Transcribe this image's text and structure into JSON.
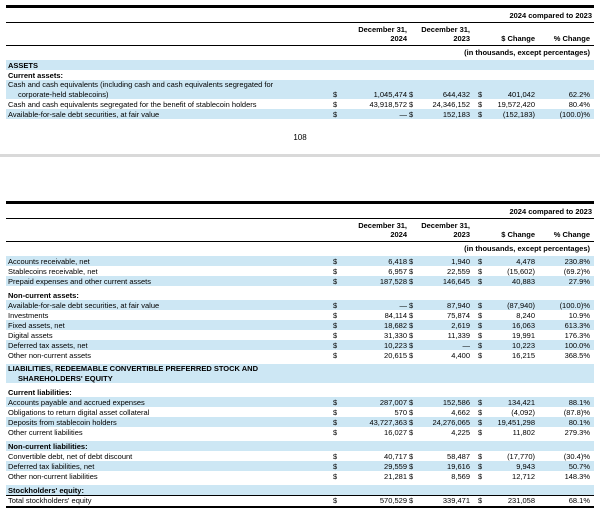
{
  "page": {
    "page_number": "108"
  },
  "table1": {
    "period_header": "2024 compared to 2023",
    "currency": "$",
    "columns": {
      "date1_line1": "December 31,",
      "date1_line2": "2024",
      "date2_line1": "December 31,",
      "date2_line2": "2023",
      "change_dollar": "$ Change",
      "change_percent": "% Change"
    },
    "units_note": "(in thousands, except percentages)",
    "rows": [
      {
        "type": "section",
        "shaded": true,
        "label": "ASSETS"
      },
      {
        "type": "section",
        "shaded": false,
        "label": "Current assets:"
      },
      {
        "type": "data",
        "shaded": true,
        "label": "Cash and cash equivalents (including cash and cash equivalents segregated for",
        "label2": "corporate-held stablecoins)",
        "v1": "1,045,474",
        "v2": "644,432",
        "v3": "401,042",
        "pct": "62.2%"
      },
      {
        "type": "data",
        "shaded": false,
        "label": "Cash and cash equivalents segregated for the benefit of stablecoin holders",
        "v1": "43,918,572",
        "v2": "24,346,152",
        "v3": "19,572,420",
        "pct": "80.4%"
      },
      {
        "type": "data",
        "shaded": true,
        "label": "Available-for-sale debt securities, at fair value",
        "v1": "—",
        "v2": "152,183",
        "v3": "(152,183)",
        "pct": "(100.0)%"
      }
    ]
  },
  "table2": {
    "period_header": "2024 compared to 2023",
    "currency": "$",
    "columns": {
      "date1_line1": "December 31,",
      "date1_line2": "2024",
      "date2_line1": "December 31,",
      "date2_line2": "2023",
      "change_dollar": "$ Change",
      "change_percent": "% Change"
    },
    "units_note": "(in thousands, except percentages)",
    "rows": [
      {
        "type": "data",
        "shaded": true,
        "label": "Accounts receivable, net",
        "v1": "6,418",
        "v2": "1,940",
        "v3": "4,478",
        "pct": "230.8%"
      },
      {
        "type": "data",
        "shaded": false,
        "label": "Stablecoins receivable, net",
        "v1": "6,957",
        "v2": "22,559",
        "v3": "(15,602)",
        "pct": "(69.2)%"
      },
      {
        "type": "data",
        "shaded": true,
        "label": "Prepaid expenses and other current assets",
        "v1": "187,528",
        "v2": "146,645",
        "v3": "40,883",
        "pct": "27.9%"
      },
      {
        "type": "spacer"
      },
      {
        "type": "section",
        "shaded": false,
        "label": "Non-current assets:"
      },
      {
        "type": "data",
        "shaded": true,
        "label": "Available-for-sale debt securities, at fair value",
        "v1": "—",
        "v2": "87,940",
        "v3": "(87,940)",
        "pct": "(100.0)%"
      },
      {
        "type": "data",
        "shaded": false,
        "label": "Investments",
        "v1": "84,114",
        "v2": "75,874",
        "v3": "8,240",
        "pct": "10.9%"
      },
      {
        "type": "data",
        "shaded": true,
        "label": "Fixed assets, net",
        "v1": "18,682",
        "v2": "2,619",
        "v3": "16,063",
        "pct": "613.3%"
      },
      {
        "type": "data",
        "shaded": false,
        "label": "Digital assets",
        "v1": "31,330",
        "v2": "11,339",
        "v3": "19,991",
        "pct": "176.3%"
      },
      {
        "type": "data",
        "shaded": true,
        "label": "Deferred tax assets, net",
        "v1": "10,223",
        "v2": "—",
        "v3": "10,223",
        "pct": "100.0%"
      },
      {
        "type": "data",
        "shaded": false,
        "label": "Other non-current assets",
        "v1": "20,615",
        "v2": "4,400",
        "v3": "16,215",
        "pct": "368.5%"
      },
      {
        "type": "spacer"
      },
      {
        "type": "section",
        "shaded": true,
        "label": "LIABILITIES, REDEEMABLE CONVERTIBLE PREFERRED STOCK AND",
        "label2": "SHAREHOLDERS' EQUITY"
      },
      {
        "type": "spacer"
      },
      {
        "type": "section",
        "shaded": false,
        "label": "Current liabilities:"
      },
      {
        "type": "data",
        "shaded": true,
        "label": "Accounts payable and accrued expenses",
        "v1": "287,007",
        "v2": "152,586",
        "v3": "134,421",
        "pct": "88.1%"
      },
      {
        "type": "data",
        "shaded": false,
        "label": "Obligations to return digital asset collateral",
        "v1": "570",
        "v2": "4,662",
        "v3": "(4,092)",
        "pct": "(87.8)%"
      },
      {
        "type": "data",
        "shaded": true,
        "label": "Deposits from stablecoin holders",
        "v1": "43,727,363",
        "v2": "24,276,065",
        "v3": "19,451,298",
        "pct": "80.1%"
      },
      {
        "type": "data",
        "shaded": false,
        "label": "Other current liabilities",
        "v1": "16,027",
        "v2": "4,225",
        "v3": "11,802",
        "pct": "279.3%"
      },
      {
        "type": "spacer"
      },
      {
        "type": "section",
        "shaded": true,
        "label": "Non-current liabilities:"
      },
      {
        "type": "data",
        "shaded": false,
        "label": "Convertible debt, net of debt discount",
        "v1": "40,717",
        "v2": "58,487",
        "v3": "(17,770)",
        "pct": "(30.4)%"
      },
      {
        "type": "data",
        "shaded": true,
        "label": "Deferred tax liabilities, net",
        "v1": "29,559",
        "v2": "19,616",
        "v3": "9,943",
        "pct": "50.7%"
      },
      {
        "type": "data",
        "shaded": false,
        "label": "Other non-current liabilities",
        "v1": "21,281",
        "v2": "8,569",
        "v3": "12,712",
        "pct": "148.3%"
      },
      {
        "type": "spacer"
      },
      {
        "type": "section",
        "shaded": true,
        "label": "Stockholders' equity:"
      },
      {
        "type": "data",
        "shaded": false,
        "total": true,
        "label": "Total stockholders' equity",
        "v1": "570,529",
        "v2": "339,471",
        "v3": "231,058",
        "pct": "68.1%"
      }
    ]
  }
}
